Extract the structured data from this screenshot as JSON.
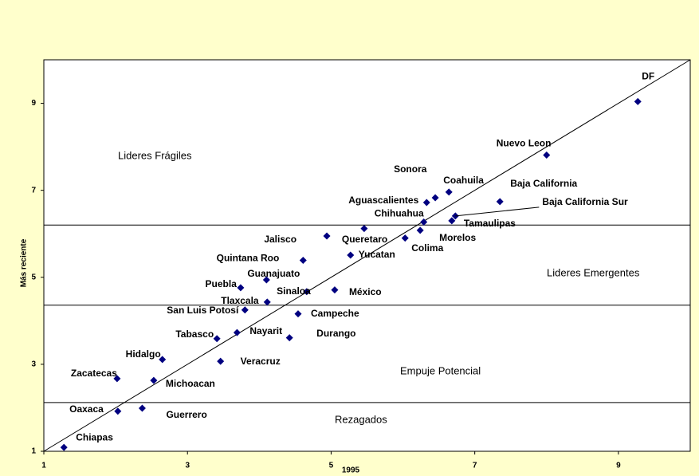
{
  "chart_data": {
    "type": "scatter",
    "xlabel": "1995",
    "ylabel": "Más reciente",
    "xlim": [
      1,
      10
    ],
    "ylim": [
      1,
      10
    ],
    "xticks": [
      1,
      3,
      5,
      7,
      9
    ],
    "yticks": [
      1,
      3,
      5,
      7,
      9
    ],
    "color": "#000080",
    "diagonal": true,
    "hlines": [
      6.2,
      4.36,
      2.12
    ],
    "point_labels": [
      "DF",
      "Nuevo Leon",
      "Coahuila",
      "Sonora",
      "Aguascalientes",
      "Baja California",
      "Chihuahua",
      "Baja California Sur",
      "Tamaulipas",
      "Morelos",
      "Colima",
      "Jalisco",
      "Queretaro",
      "Yucatan",
      "Quintana Roo",
      "Guanajuato",
      "Puebla",
      "Sinaloa",
      "México",
      "Tlaxcala",
      "San Luis Potosí",
      "Campeche",
      "Nayarit",
      "Tabasco",
      "Durango",
      "Hidalgo",
      "Veracruz",
      "Zacatecas",
      "Michoacan",
      "Oaxaca",
      "Guerrero",
      "Chiapas"
    ],
    "x": [
      9.27,
      8.0,
      6.64,
      6.45,
      6.33,
      7.35,
      6.29,
      6.73,
      6.68,
      6.24,
      6.03,
      4.94,
      5.46,
      5.27,
      4.61,
      4.1,
      3.74,
      4.66,
      5.05,
      4.11,
      3.8,
      4.54,
      3.69,
      3.41,
      4.42,
      2.65,
      3.46,
      2.02,
      2.53,
      2.03,
      2.37,
      1.28
    ],
    "values": [
      9.04,
      7.81,
      6.96,
      6.83,
      6.72,
      6.74,
      6.27,
      6.41,
      6.3,
      6.08,
      5.9,
      5.95,
      6.12,
      5.51,
      5.39,
      4.94,
      4.76,
      4.67,
      4.71,
      4.43,
      4.25,
      4.16,
      3.73,
      3.59,
      3.61,
      3.11,
      3.07,
      2.67,
      2.63,
      1.92,
      1.99,
      1.09
    ],
    "annotations": [
      "Lideres Frágiles",
      "Lideres Emergentes",
      "Empuje Potencial",
      "Rezagados"
    ]
  }
}
